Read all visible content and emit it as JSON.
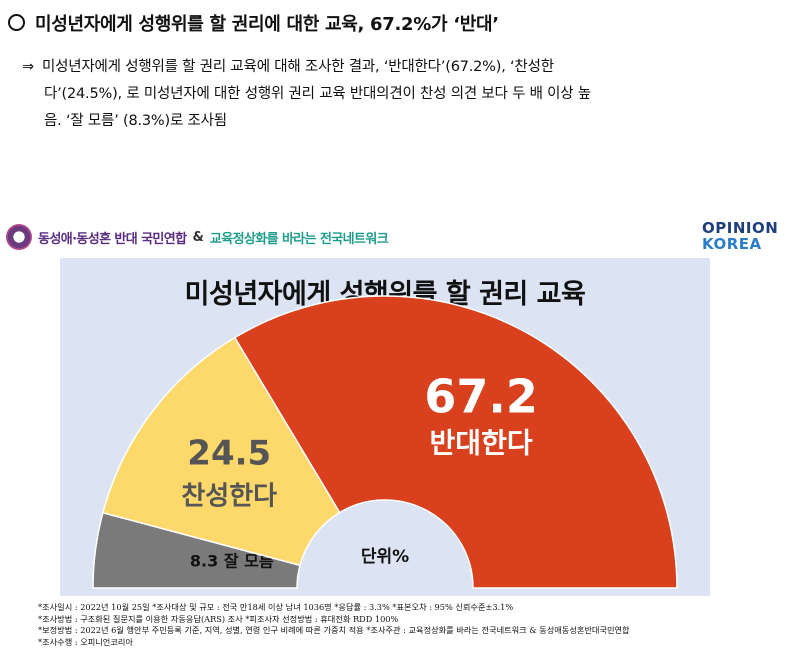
{
  "heading": "미성년자에게 성행위를 할 권리에 대한 교육, 67.2%가 ‘반대’",
  "paragraph": {
    "arrow": "⇒",
    "line1": "미성년자에게 성행위를 할 권리 교육에 대해 조사한 결과, ‘반대한다’(67.2%), ‘찬성한",
    "line2": "다’(24.5%), 로 미성년자에 대한 성행위 권리 교육 반대의견이 찬성 의견 보다 두 배 이상 높",
    "line3": "음. ‘잘 모름’ (8.3%)로 조사됨"
  },
  "brand": {
    "org1": "동성애·동성혼 반대 국민연합",
    "amp": "&",
    "org2": "교육정상화를 바라는 전국네트워크",
    "logo_line1": "OPINION",
    "logo_line2": "KOREA"
  },
  "colors": {
    "oppose": "#d9401e",
    "support": "#fdd86b",
    "unknown": "#7a7a7a",
    "background": "#dce3f3"
  },
  "chart_data": {
    "type": "pie",
    "style": "half-donut",
    "title": "미성년자에게 성행위를 할 권리 교육",
    "center_label": "단위%",
    "slices": [
      {
        "label": "잘 모름",
        "value": 8.3,
        "value_text": "8.3",
        "color": "#7a7a7a"
      },
      {
        "label": "찬성한다",
        "value": 24.5,
        "value_text": "24.5",
        "color": "#fdd86b"
      },
      {
        "label": "반대한다",
        "value": 67.2,
        "value_text": "67.2",
        "color": "#d9401e"
      }
    ]
  },
  "footnotes": [
    "*조사일시 : 2022년 10월 25일   *조사대상 및 규모 : 전국 만18세 이상 남녀 1036명  *응답률 : 3.3%    *표본오차 : 95% 신뢰수준±3.1%",
    "*조사방법 : 구조화된 질문지를 이용한 자동응답(ARS) 조사  *피조사자 선정방법 : 휴대전화 RDD 100%",
    "*보정방법 : 2022년 6월 행안부 주민등록 기준, 지역, 성별, 연령 인구 비례에 따른 가중치 적용  *조사주관 : 교육정상화를 바라는 전국네트워크 & 동성애동성혼반대국민연합",
    "*조사수행 : 오피니언코리아"
  ]
}
